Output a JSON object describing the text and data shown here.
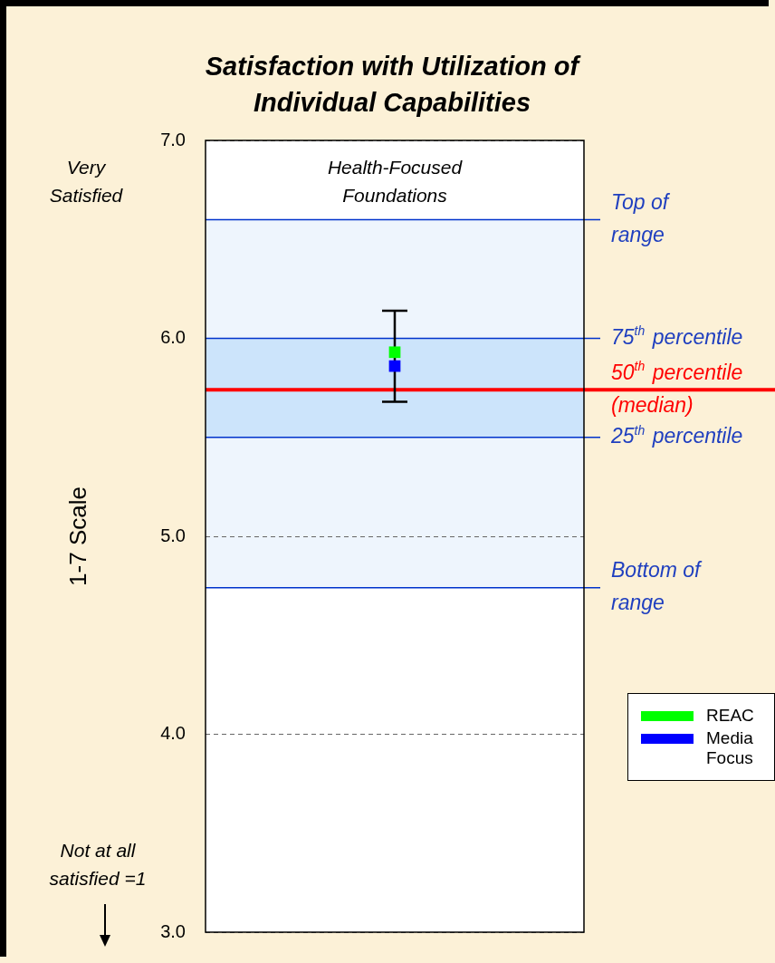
{
  "chart_data": {
    "type": "scatter",
    "title": "Satisfaction with Utilization of Individual Capabilities",
    "ylabel": "1-7 Scale",
    "categories": [
      null
    ],
    "series": [
      {
        "name": "REAC",
        "color": "#00ff00",
        "values": [
          5.93
        ],
        "errors": [
          [
            5.68,
            6.14
          ]
        ]
      },
      {
        "name": "Media Focus",
        "color": "#0000ff",
        "values": [
          5.86
        ]
      }
    ],
    "ylim": [
      3,
      7
    ],
    "yticks": [
      {
        "value": 3,
        "label": "3.0"
      },
      {
        "value": 4,
        "label": "4.0"
      },
      {
        "value": 5,
        "label": "5.0"
      },
      {
        "value": 6,
        "label": "6.0"
      },
      {
        "value": 7,
        "label": "7.0"
      }
    ],
    "grid": "y",
    "legend": "right",
    "bands": [
      {
        "axis": "y",
        "from": 4.74,
        "to": 6.6,
        "color": "#eef5fd"
      },
      {
        "axis": "y",
        "from": 5.5,
        "to": 6.0,
        "color": "#cce4fb"
      }
    ],
    "ref_lines": [
      {
        "axis": "y",
        "value": 6.6,
        "label": "Top of\nrange",
        "color": "#0033cc"
      },
      {
        "axis": "y",
        "value": 6.0,
        "label": "75$^{th}$ percentile",
        "color": "#0033cc"
      },
      {
        "axis": "y",
        "value": 5.74,
        "label": "50$^{th}$ percentile\n(median)",
        "color": "#ff0000"
      },
      {
        "axis": "y",
        "value": 5.5,
        "label": "25$^{th}$ percentile",
        "color": "#0033cc"
      },
      {
        "axis": "y",
        "value": 4.74,
        "label": "Bottom of\nrange",
        "color": "#0033cc"
      }
    ],
    "annotations": [
      "Very\nSatisfied",
      "Health-Focused\nFoundations",
      "Not at all\nsatisfied =1"
    ]
  }
}
